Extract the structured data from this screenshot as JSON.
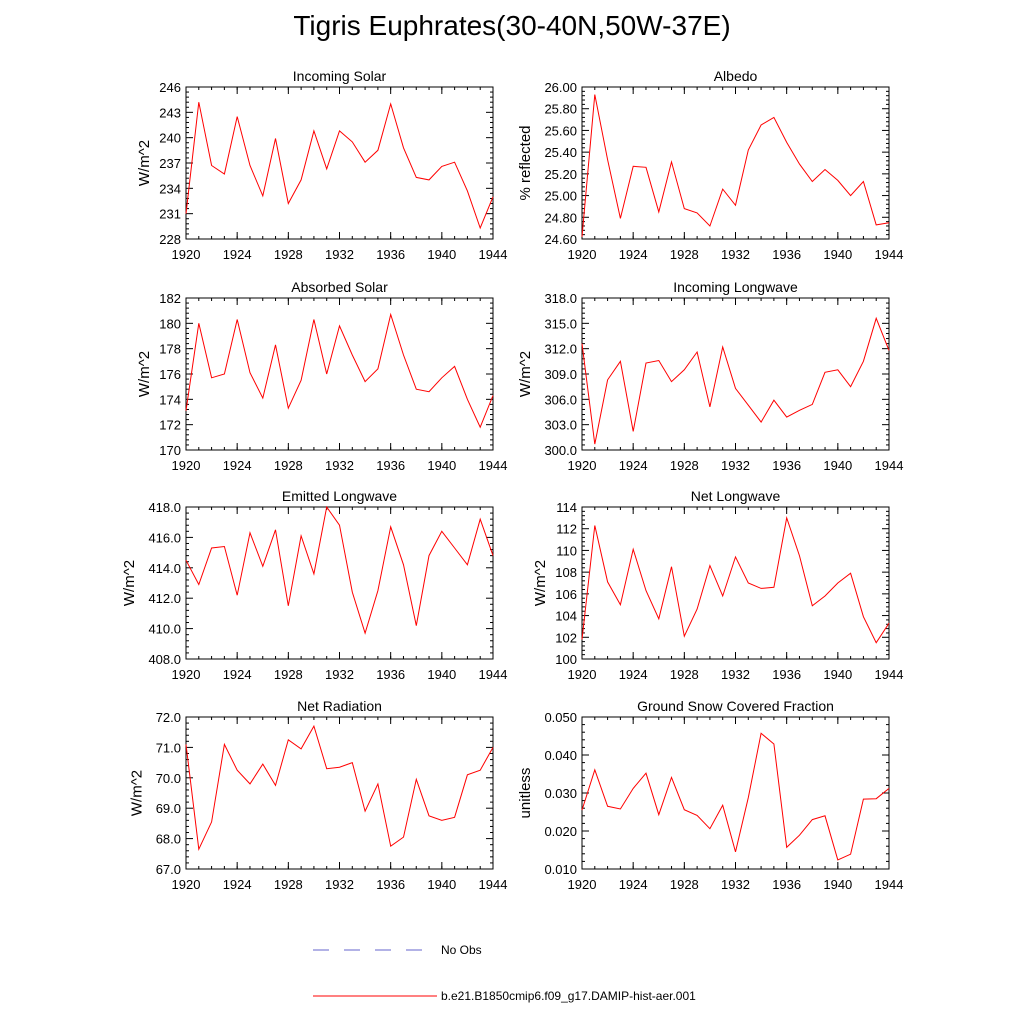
{
  "title": "Tigris Euphrates(30-40N,50W-37E)",
  "colors": {
    "model": "#ff0000",
    "obs": "#6666cc"
  },
  "legend": [
    {
      "label": "No Obs",
      "style": "dashed",
      "color": "#6666cc"
    },
    {
      "label": "b.e21.B1850cmip6.f09_g17.DAMIP-hist-aer.001",
      "style": "solid",
      "color": "#ff0000"
    }
  ],
  "chart_data": [
    {
      "type": "line",
      "title": "Incoming Solar",
      "ylabel": "W/m^2",
      "xlim": [
        1920,
        1944
      ],
      "xticks": [
        "1920",
        "1924",
        "1928",
        "1932",
        "1936",
        "1940",
        "1944"
      ],
      "ylim": [
        228,
        246
      ],
      "yticks": [
        "228",
        "231",
        "234",
        "237",
        "240",
        "243",
        "246"
      ],
      "x": [
        1920,
        1921,
        1922,
        1923,
        1924,
        1925,
        1926,
        1927,
        1928,
        1929,
        1930,
        1931,
        1932,
        1933,
        1934,
        1935,
        1936,
        1937,
        1938,
        1939,
        1940,
        1941,
        1942,
        1943,
        1944
      ],
      "series": [
        {
          "name": "b.e21.B1850cmip6.f09_g17.DAMIP-hist-aer.001",
          "values": [
            231.0,
            244.2,
            236.7,
            235.7,
            242.5,
            236.7,
            233.1,
            239.9,
            232.2,
            235.0,
            240.8,
            236.3,
            240.8,
            239.5,
            237.1,
            238.5,
            244.0,
            238.8,
            235.3,
            235.0,
            236.6,
            237.1,
            233.7,
            229.3,
            233.0
          ]
        }
      ]
    },
    {
      "type": "line",
      "title": "Albedo",
      "ylabel": "% reflected",
      "xlim": [
        1920,
        1944
      ],
      "xticks": [
        "1920",
        "1924",
        "1928",
        "1932",
        "1936",
        "1940",
        "1944"
      ],
      "ylim": [
        24.6,
        26.0
      ],
      "yticks": [
        "24.60",
        "24.80",
        "25.00",
        "25.20",
        "25.40",
        "25.60",
        "25.80",
        "26.00"
      ],
      "x": [
        1920,
        1921,
        1922,
        1923,
        1924,
        1925,
        1926,
        1927,
        1928,
        1929,
        1930,
        1931,
        1932,
        1933,
        1934,
        1935,
        1936,
        1937,
        1938,
        1939,
        1940,
        1941,
        1942,
        1943,
        1944
      ],
      "series": [
        {
          "name": "b.e21.B1850cmip6.f09_g17.DAMIP-hist-aer.001",
          "values": [
            24.62,
            25.93,
            25.33,
            24.79,
            25.27,
            25.26,
            24.85,
            25.31,
            24.88,
            24.84,
            24.72,
            25.06,
            24.91,
            25.42,
            25.65,
            25.72,
            25.49,
            25.29,
            25.13,
            25.24,
            25.14,
            25.0,
            25.13,
            24.73,
            24.75
          ]
        }
      ]
    },
    {
      "type": "line",
      "title": "Absorbed Solar",
      "ylabel": "W/m^2",
      "xlim": [
        1920,
        1944
      ],
      "xticks": [
        "1920",
        "1924",
        "1928",
        "1932",
        "1936",
        "1940",
        "1944"
      ],
      "ylim": [
        170,
        182
      ],
      "yticks": [
        "170",
        "172",
        "174",
        "176",
        "178",
        "180",
        "182"
      ],
      "x": [
        1920,
        1921,
        1922,
        1923,
        1924,
        1925,
        1926,
        1927,
        1928,
        1929,
        1930,
        1931,
        1932,
        1933,
        1934,
        1935,
        1936,
        1937,
        1938,
        1939,
        1940,
        1941,
        1942,
        1943,
        1944
      ],
      "series": [
        {
          "name": "b.e21.B1850cmip6.f09_g17.DAMIP-hist-aer.001",
          "values": [
            173.1,
            180.0,
            175.7,
            176.0,
            180.3,
            176.1,
            174.1,
            178.3,
            173.3,
            175.5,
            180.3,
            176.0,
            179.8,
            177.5,
            175.4,
            176.4,
            180.7,
            177.5,
            174.8,
            174.6,
            175.7,
            176.6,
            174.0,
            171.8,
            174.3
          ]
        }
      ]
    },
    {
      "type": "line",
      "title": "Incoming Longwave",
      "ylabel": "W/m^2",
      "xlim": [
        1920,
        1944
      ],
      "xticks": [
        "1920",
        "1924",
        "1928",
        "1932",
        "1936",
        "1940",
        "1944"
      ],
      "ylim": [
        300,
        318
      ],
      "yticks": [
        "300.0",
        "303.0",
        "306.0",
        "309.0",
        "312.0",
        "315.0",
        "318.0"
      ],
      "x": [
        1920,
        1921,
        1922,
        1923,
        1924,
        1925,
        1926,
        1927,
        1928,
        1929,
        1930,
        1931,
        1932,
        1933,
        1934,
        1935,
        1936,
        1937,
        1938,
        1939,
        1940,
        1941,
        1942,
        1943,
        1944
      ],
      "series": [
        {
          "name": "b.e21.B1850cmip6.f09_g17.DAMIP-hist-aer.001",
          "values": [
            312.6,
            300.7,
            308.3,
            310.5,
            302.2,
            310.3,
            310.6,
            308.1,
            309.5,
            311.6,
            305.1,
            312.2,
            307.3,
            305.3,
            303.3,
            305.9,
            303.9,
            304.7,
            305.4,
            309.2,
            309.5,
            307.5,
            310.5,
            315.6,
            311.8
          ]
        }
      ]
    },
    {
      "type": "line",
      "title": "Emitted Longwave",
      "ylabel": "W/m^2",
      "xlim": [
        1920,
        1944
      ],
      "xticks": [
        "1920",
        "1924",
        "1928",
        "1932",
        "1936",
        "1940",
        "1944"
      ],
      "ylim": [
        408,
        418
      ],
      "yticks": [
        "408.0",
        "410.0",
        "412.0",
        "414.0",
        "416.0",
        "418.0"
      ],
      "x": [
        1920,
        1921,
        1922,
        1923,
        1924,
        1925,
        1926,
        1927,
        1928,
        1929,
        1930,
        1931,
        1932,
        1933,
        1934,
        1935,
        1936,
        1937,
        1938,
        1939,
        1940,
        1941,
        1942,
        1943,
        1944
      ],
      "series": [
        {
          "name": "b.e21.B1850cmip6.f09_g17.DAMIP-hist-aer.001",
          "values": [
            414.5,
            412.9,
            415.3,
            415.4,
            412.2,
            416.3,
            414.1,
            416.5,
            411.5,
            416.1,
            413.6,
            418.0,
            416.8,
            412.4,
            409.7,
            412.5,
            416.7,
            414.2,
            410.2,
            414.8,
            416.4,
            415.3,
            414.2,
            417.2,
            414.8
          ]
        }
      ]
    },
    {
      "type": "line",
      "title": "Net Longwave",
      "ylabel": "W/m^2",
      "xlim": [
        1920,
        1944
      ],
      "xticks": [
        "1920",
        "1924",
        "1928",
        "1932",
        "1936",
        "1940",
        "1944"
      ],
      "ylim": [
        100,
        114
      ],
      "yticks": [
        "100",
        "102",
        "104",
        "106",
        "108",
        "110",
        "112",
        "114"
      ],
      "x": [
        1920,
        1921,
        1922,
        1923,
        1924,
        1925,
        1926,
        1927,
        1928,
        1929,
        1930,
        1931,
        1932,
        1933,
        1934,
        1935,
        1936,
        1937,
        1938,
        1939,
        1940,
        1941,
        1942,
        1943,
        1944
      ],
      "series": [
        {
          "name": "b.e21.B1850cmip6.f09_g17.DAMIP-hist-aer.001",
          "values": [
            101.8,
            112.3,
            107.1,
            105.0,
            110.1,
            106.3,
            103.7,
            108.5,
            102.1,
            104.6,
            108.6,
            105.8,
            109.4,
            107.0,
            106.5,
            106.6,
            113.0,
            109.5,
            104.9,
            105.8,
            107.0,
            107.9,
            103.9,
            101.5,
            103.3
          ]
        }
      ]
    },
    {
      "type": "line",
      "title": "Net Radiation",
      "ylabel": "W/m^2",
      "xlim": [
        1920,
        1944
      ],
      "xticks": [
        "1920",
        "1924",
        "1928",
        "1932",
        "1936",
        "1940",
        "1944"
      ],
      "ylim": [
        67,
        72
      ],
      "yticks": [
        "67.0",
        "68.0",
        "69.0",
        "70.0",
        "71.0",
        "72.0"
      ],
      "x": [
        1920,
        1921,
        1922,
        1923,
        1924,
        1925,
        1926,
        1927,
        1928,
        1929,
        1930,
        1931,
        1932,
        1933,
        1934,
        1935,
        1936,
        1937,
        1938,
        1939,
        1940,
        1941,
        1942,
        1943,
        1944
      ],
      "series": [
        {
          "name": "b.e21.B1850cmip6.f09_g17.DAMIP-hist-aer.001",
          "values": [
            71.1,
            67.65,
            68.55,
            71.1,
            70.25,
            69.8,
            70.45,
            69.75,
            71.25,
            70.95,
            71.7,
            70.3,
            70.35,
            70.5,
            68.9,
            69.8,
            67.75,
            68.05,
            69.95,
            68.75,
            68.6,
            68.7,
            70.1,
            70.25,
            71.0
          ]
        }
      ]
    },
    {
      "type": "line",
      "title": "Ground Snow Covered Fraction",
      "ylabel": "unitless",
      "xlim": [
        1920,
        1944
      ],
      "xticks": [
        "1920",
        "1924",
        "1928",
        "1932",
        "1936",
        "1940",
        "1944"
      ],
      "ylim": [
        0.01,
        0.05
      ],
      "yticks": [
        "0.010",
        "0.020",
        "0.030",
        "0.040",
        "0.050"
      ],
      "x": [
        1920,
        1921,
        1922,
        1923,
        1924,
        1925,
        1926,
        1927,
        1928,
        1929,
        1930,
        1931,
        1932,
        1933,
        1934,
        1935,
        1936,
        1937,
        1938,
        1939,
        1940,
        1941,
        1942,
        1943,
        1944
      ],
      "series": [
        {
          "name": "b.e21.B1850cmip6.f09_g17.DAMIP-hist-aer.001",
          "values": [
            0.0255,
            0.0361,
            0.0265,
            0.0258,
            0.0312,
            0.0352,
            0.0243,
            0.0341,
            0.0256,
            0.0241,
            0.0206,
            0.0268,
            0.0145,
            0.0288,
            0.0457,
            0.0429,
            0.0157,
            0.0189,
            0.023,
            0.024,
            0.0124,
            0.0139,
            0.0284,
            0.0285,
            0.0312
          ]
        }
      ]
    }
  ]
}
